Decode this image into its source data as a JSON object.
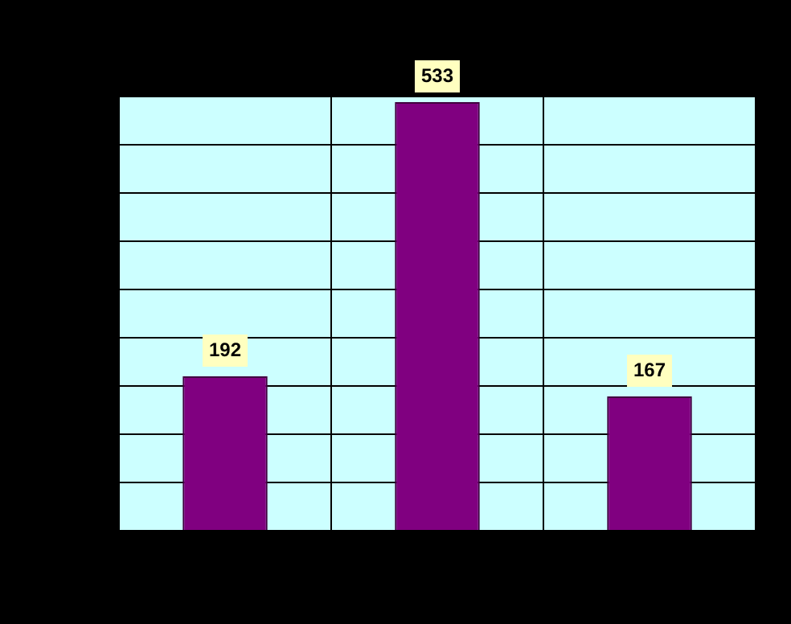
{
  "chart_data": {
    "type": "bar",
    "categories": [
      null,
      null,
      null
    ],
    "values": [
      192,
      533,
      167
    ],
    "color": "#800080",
    "ylim": [
      0,
      540
    ],
    "yticks": [
      {
        "value": 0,
        "label": null
      },
      {
        "value": 60,
        "label": null
      },
      {
        "value": 120,
        "label": null
      },
      {
        "value": 180,
        "label": null
      },
      {
        "value": 240,
        "label": null
      },
      {
        "value": 300,
        "label": null
      },
      {
        "value": 360,
        "label": null
      },
      {
        "value": 420,
        "label": null
      },
      {
        "value": 480,
        "label": null
      },
      {
        "value": 540,
        "label": null
      }
    ],
    "grid": true,
    "data_labels": true
  }
}
